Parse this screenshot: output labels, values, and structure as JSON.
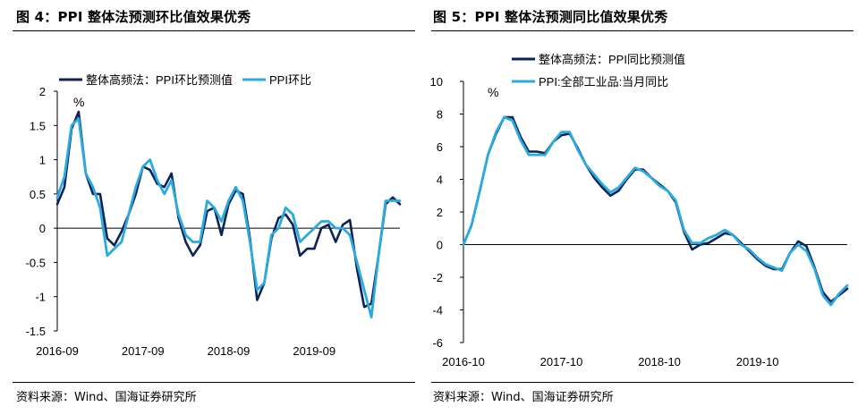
{
  "charts": [
    {
      "title": "图 4：PPI 整体法预测环比值效果优秀",
      "source": "资料来源：Wind、国海证券研究所"
    },
    {
      "title": "图 5：PPI 整体法预测同比值效果优秀",
      "source": "资料来源：Wind、国海证券研究所"
    }
  ],
  "chart_data": [
    {
      "type": "line",
      "title": "图 4：PPI 整体法预测环比值效果优秀",
      "unit_label": "%",
      "ylim": [
        -1.5,
        2
      ],
      "yticks": [
        -1.5,
        -1,
        -0.5,
        0,
        0.5,
        1,
        1.5,
        2
      ],
      "ytick_labels": [
        "-1.5",
        "-1",
        "-0.5",
        "0",
        "0.5",
        "1",
        "1.5",
        "2"
      ],
      "x_tick_labels": [
        {
          "index": 0,
          "label": "2016-09"
        },
        {
          "index": 12,
          "label": "2017-09"
        },
        {
          "index": 24,
          "label": "2018-09"
        },
        {
          "index": 36,
          "label": "2019-09"
        }
      ],
      "legend": "top",
      "series": [
        {
          "name": "整体高频法：PPI环比预测值",
          "color": "#0d2356",
          "values": [
            0.35,
            0.6,
            1.45,
            1.7,
            0.8,
            0.5,
            0.5,
            -0.15,
            -0.25,
            -0.05,
            0.2,
            0.5,
            0.9,
            0.85,
            0.65,
            0.6,
            0.8,
            0.15,
            -0.2,
            -0.4,
            -0.25,
            0.25,
            0.3,
            -0.1,
            0.35,
            0.55,
            0.5,
            -0.15,
            -1.05,
            -0.8,
            -0.15,
            0.15,
            0.2,
            0.05,
            -0.4,
            -0.3,
            -0.3,
            0.0,
            0.05,
            -0.2,
            0.05,
            0.12,
            -0.6,
            -1.15,
            -1.1,
            -0.4,
            0.35,
            0.45,
            0.35
          ]
        },
        {
          "name": "PPI环比",
          "color": "#29abe2",
          "values": [
            0.45,
            0.75,
            1.5,
            1.6,
            0.8,
            0.6,
            0.3,
            -0.4,
            -0.3,
            -0.2,
            0.2,
            0.6,
            0.9,
            1.0,
            0.7,
            0.5,
            0.7,
            0.2,
            -0.1,
            -0.2,
            -0.2,
            0.4,
            0.3,
            0.1,
            0.4,
            0.6,
            0.4,
            -0.2,
            -0.9,
            -0.8,
            -0.1,
            0.0,
            0.3,
            0.2,
            -0.2,
            -0.1,
            0.0,
            0.1,
            0.1,
            0.0,
            0.0,
            -0.1,
            -0.5,
            -0.9,
            -1.3,
            -0.4,
            0.4,
            0.4,
            0.4
          ]
        }
      ]
    },
    {
      "type": "line",
      "title": "图 5：PPI 整体法预测同比值效果优秀",
      "unit_label": "%",
      "ylim": [
        -6,
        10
      ],
      "yticks": [
        -6,
        -4,
        -2,
        0,
        2,
        4,
        6,
        8,
        10
      ],
      "ytick_labels": [
        "-6",
        "-4",
        "-2",
        "0",
        "2",
        "4",
        "6",
        "8",
        "10"
      ],
      "x_tick_labels": [
        {
          "index": 0,
          "label": "2016-10"
        },
        {
          "index": 12,
          "label": "2017-10"
        },
        {
          "index": 24,
          "label": "2018-10"
        },
        {
          "index": 36,
          "label": "2019-10"
        }
      ],
      "legend": "top",
      "series": [
        {
          "name": "整体高频法：PPI同比预测值",
          "color": "#0d2356",
          "values": [
            0.0,
            1.2,
            3.3,
            5.5,
            6.8,
            7.8,
            7.8,
            6.6,
            5.7,
            5.7,
            5.6,
            6.3,
            6.7,
            6.8,
            5.9,
            4.9,
            4.1,
            3.5,
            3.0,
            3.3,
            4.0,
            4.6,
            4.6,
            4.1,
            3.7,
            3.3,
            2.6,
            0.8,
            -0.3,
            0.0,
            0.1,
            0.4,
            0.7,
            0.6,
            0.1,
            -0.4,
            -0.9,
            -1.3,
            -1.5,
            -1.5,
            -0.5,
            0.2,
            -0.1,
            -1.4,
            -2.9,
            -3.5,
            -3.1,
            -2.7
          ]
        },
        {
          "name": "PPI:全部工业品:当月同比",
          "color": "#29abe2",
          "values": [
            0.0,
            1.2,
            3.3,
            5.5,
            6.9,
            7.8,
            7.6,
            6.4,
            5.5,
            5.5,
            5.5,
            6.3,
            6.9,
            6.9,
            5.8,
            4.9,
            4.3,
            3.7,
            3.2,
            3.5,
            4.1,
            4.7,
            4.5,
            4.1,
            3.6,
            3.3,
            2.7,
            0.9,
            0.1,
            0.1,
            0.4,
            0.6,
            0.9,
            0.6,
            0.0,
            -0.3,
            -0.8,
            -1.2,
            -1.4,
            -1.6,
            -0.5,
            0.0,
            -0.4,
            -1.5,
            -3.1,
            -3.7,
            -3.0,
            -2.5
          ]
        }
      ]
    }
  ]
}
